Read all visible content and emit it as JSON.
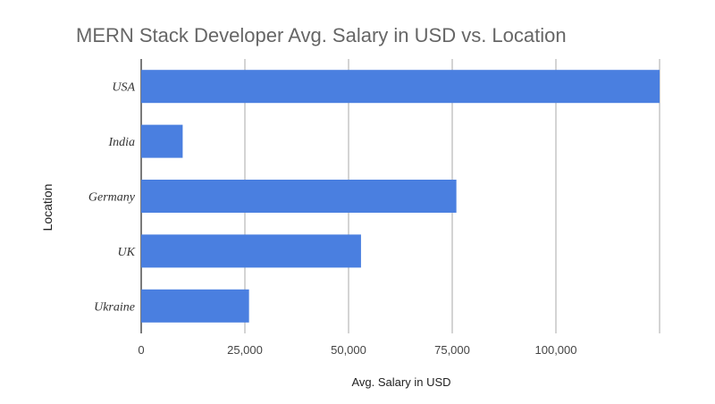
{
  "chart_data": {
    "type": "bar",
    "orientation": "horizontal",
    "title": "MERN Stack Developer Avg. Salary in USD vs. Location",
    "xlabel": "Avg. Salary in USD",
    "ylabel": "Location",
    "categories": [
      "USA",
      "India",
      "Germany",
      "UK",
      "Ukraine"
    ],
    "values": [
      125000,
      10000,
      76000,
      53000,
      26000
    ],
    "xlim": [
      0,
      125000
    ],
    "xticks": [
      0,
      25000,
      50000,
      75000,
      100000
    ],
    "xtick_labels": [
      "0",
      "25,000",
      "50,000",
      "75,000",
      "100,000"
    ],
    "grid": true,
    "legend": "none",
    "bar_color": "#4a7fe0"
  }
}
